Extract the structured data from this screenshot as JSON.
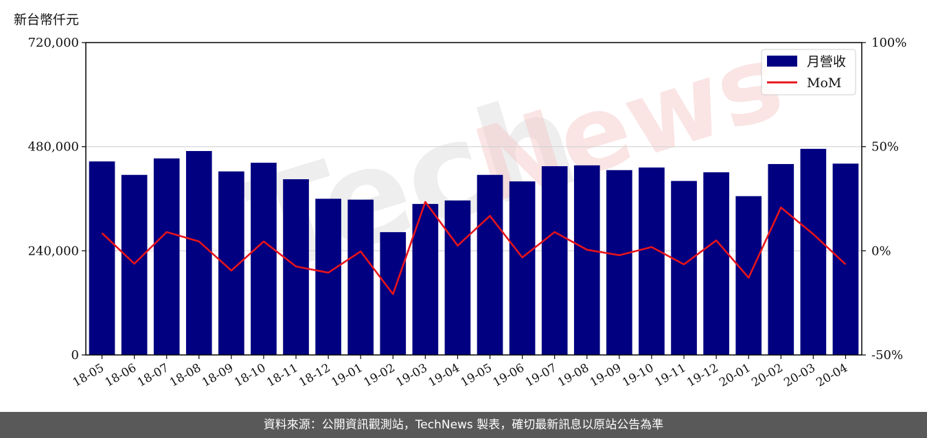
{
  "unit_label": "新台幣仟元",
  "footer_text": "資料來源：公開資訊觀測站，TechNews 製表，確切最新訊息以原站公告為準",
  "chart_data": {
    "type": "bar",
    "categories": [
      "18-05",
      "18-06",
      "18-07",
      "18-08",
      "18-09",
      "18-10",
      "18-11",
      "18-12",
      "19-01",
      "19-02",
      "19-03",
      "19-04",
      "19-05",
      "19-06",
      "19-07",
      "19-08",
      "19-09",
      "19-10",
      "19-11",
      "19-12",
      "20-01",
      "20-02",
      "20-03",
      "20-04"
    ],
    "series": [
      {
        "name": "月營收",
        "axis": "left",
        "color": "#000080",
        "values": [
          446000,
          415000,
          453000,
          470000,
          423000,
          443000,
          405000,
          360000,
          358000,
          283000,
          348000,
          356000,
          415000,
          400000,
          435000,
          437000,
          426000,
          432000,
          401000,
          421000,
          366000,
          440000,
          475000,
          441000
        ]
      },
      {
        "name": "MoM",
        "axis": "right",
        "type": "line",
        "color": "#e8141b",
        "values": [
          8.5,
          -6.2,
          9.0,
          4.5,
          -9.5,
          4.5,
          -7.5,
          -10.5,
          -0.3,
          -20.8,
          23.5,
          2.5,
          16.8,
          -3.2,
          9.0,
          0.5,
          -2.1,
          1.8,
          -6.5,
          5.0,
          -12.9,
          20.8,
          8.0,
          -6.5
        ]
      }
    ],
    "y_left": {
      "ylim": [
        0,
        720000
      ],
      "ticks": [
        0,
        240000,
        480000,
        720000
      ],
      "tick_labels": [
        "0",
        "240,000",
        "480,000",
        "720,000"
      ]
    },
    "y_right": {
      "ylim": [
        -50,
        100
      ],
      "ticks": [
        -50,
        0,
        50,
        100
      ],
      "tick_labels": [
        "-50%",
        "0%",
        "50%",
        "100%"
      ]
    },
    "grid": "horizontal",
    "legend": {
      "placement": "top-right",
      "entries": [
        {
          "label": "月營收",
          "kind": "bar",
          "color": "#000080"
        },
        {
          "label": "MoM",
          "kind": "line",
          "color": "#e8141b"
        }
      ]
    }
  }
}
